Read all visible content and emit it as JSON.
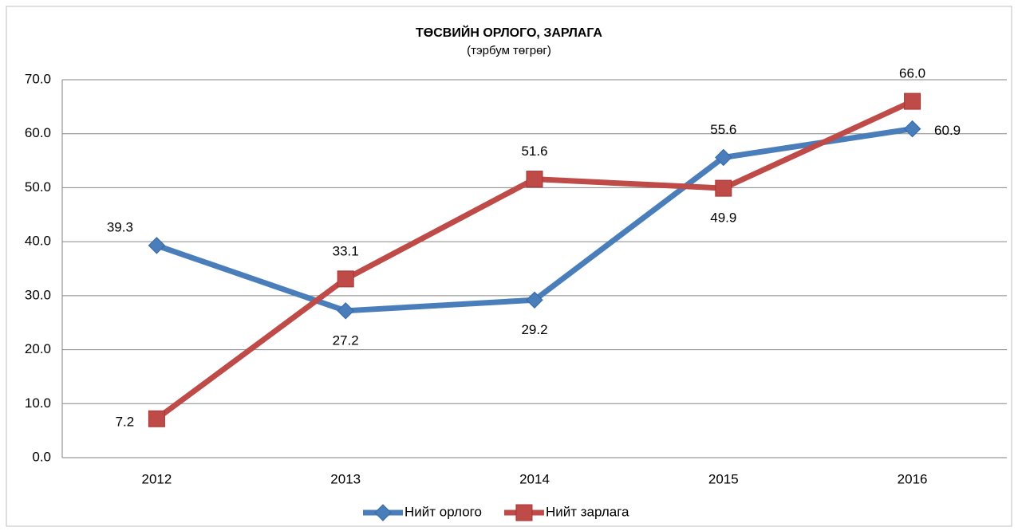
{
  "chart_data": {
    "type": "line",
    "title": "ТӨСВИЙН ОРЛОГО, ЗАРЛАГА",
    "subtitle": "(тэрбум төгрөг)",
    "categories": [
      "2012",
      "2013",
      "2014",
      "2015",
      "2016"
    ],
    "series": [
      {
        "name": "Нийт орлого",
        "color": "#4a7ebb",
        "marker": "diamond",
        "values": [
          39.3,
          27.2,
          29.2,
          55.6,
          60.9
        ],
        "value_labels": [
          "39.3",
          "27.2",
          "29.2",
          "55.6",
          "60.9"
        ]
      },
      {
        "name": "Нийт зарлага",
        "color": "#be4b48",
        "marker": "square",
        "values": [
          7.2,
          33.1,
          51.6,
          49.9,
          66
        ],
        "value_labels": [
          "7.2",
          "33.1",
          "51.6",
          "49.9",
          "66.0"
        ]
      }
    ],
    "ylim": [
      0,
      70
    ],
    "yticks": [
      {
        "value": 0,
        "label": "0.0"
      },
      {
        "value": 10,
        "label": "10.0"
      },
      {
        "value": 20,
        "label": "20.0"
      },
      {
        "value": 30,
        "label": "30.0"
      },
      {
        "value": 40,
        "label": "40.0"
      },
      {
        "value": 50,
        "label": "50.0"
      },
      {
        "value": 60,
        "label": "60.0"
      },
      {
        "value": 70,
        "label": "70.0"
      }
    ],
    "grid": true,
    "legend": "bottom"
  }
}
